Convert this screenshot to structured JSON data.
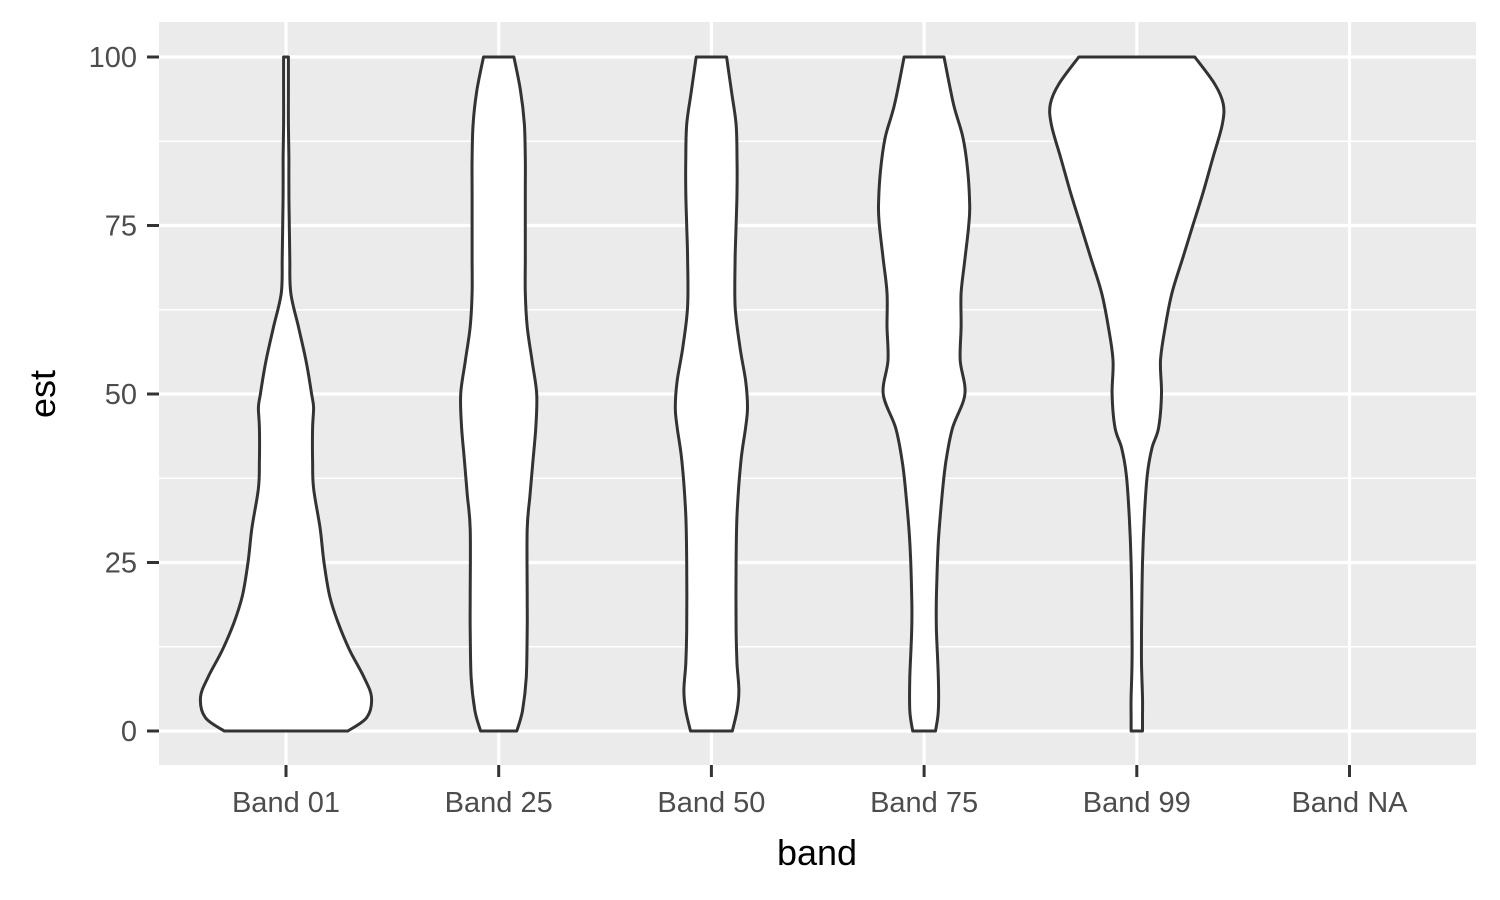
{
  "chart_data": {
    "type": "violin",
    "xlabel": "band",
    "ylabel": "est",
    "ylim": [
      -5,
      105
    ],
    "y_ticks": [
      0,
      25,
      50,
      75,
      100
    ],
    "y_tick_labels": [
      "0",
      "25",
      "50",
      "75",
      "100"
    ],
    "categories": [
      "Band 01",
      "Band 25",
      "Band 50",
      "Band 75",
      "Band 99",
      "Band NA"
    ],
    "grid": true,
    "legend": "none",
    "colors": {
      "panel_background": "#ebebeb",
      "grid_line": "#ffffff",
      "violin_fill": "#ffffff",
      "violin_stroke": "#333333",
      "tick_label": "#4d4d4d",
      "axis_title": "#000000"
    },
    "violins": [
      {
        "category": "Band 01",
        "y_min": 0,
        "y_max": 100,
        "density_y": [
          0,
          2,
          5,
          8,
          12,
          16,
          20,
          25,
          30,
          36,
          40,
          45,
          48,
          50,
          55,
          60,
          65,
          70,
          75,
          80,
          85,
          90,
          95,
          98,
          100
        ],
        "density_width": [
          0.65,
          0.85,
          0.9,
          0.82,
          0.67,
          0.55,
          0.46,
          0.4,
          0.36,
          0.29,
          0.28,
          0.28,
          0.29,
          0.27,
          0.21,
          0.13,
          0.05,
          0.04,
          0.035,
          0.03,
          0.03,
          0.025,
          0.025,
          0.025,
          0.025
        ]
      },
      {
        "category": "Band 25",
        "y_min": 0,
        "y_max": 100,
        "density_y": [
          0,
          3,
          8,
          15,
          20,
          30,
          35,
          40,
          45,
          50,
          55,
          60,
          65,
          70,
          75,
          80,
          85,
          90,
          95,
          100
        ],
        "density_width": [
          0.19,
          0.25,
          0.29,
          0.3,
          0.3,
          0.3,
          0.33,
          0.36,
          0.39,
          0.4,
          0.35,
          0.3,
          0.28,
          0.28,
          0.28,
          0.28,
          0.28,
          0.27,
          0.23,
          0.16
        ]
      },
      {
        "category": "Band 50",
        "y_min": 0,
        "y_max": 100,
        "density_y": [
          0,
          3,
          6,
          10,
          15,
          25,
          32,
          40,
          45,
          48,
          52,
          57,
          63,
          70,
          75,
          80,
          85,
          90,
          95,
          100
        ],
        "density_width": [
          0.22,
          0.27,
          0.29,
          0.27,
          0.26,
          0.26,
          0.27,
          0.31,
          0.36,
          0.38,
          0.36,
          0.3,
          0.25,
          0.25,
          0.26,
          0.27,
          0.27,
          0.26,
          0.21,
          0.16
        ]
      },
      {
        "category": "Band 75",
        "y_min": 0,
        "y_max": 100,
        "density_y": [
          0,
          3,
          8,
          15,
          20,
          28,
          35,
          40,
          45,
          50,
          55,
          60,
          65,
          70,
          75,
          78,
          83,
          88,
          93,
          100
        ],
        "density_width": [
          0.12,
          0.15,
          0.15,
          0.13,
          0.13,
          0.15,
          0.19,
          0.23,
          0.3,
          0.43,
          0.38,
          0.39,
          0.39,
          0.43,
          0.47,
          0.48,
          0.46,
          0.41,
          0.31,
          0.21
        ]
      },
      {
        "category": "Band 99",
        "y_min": 0,
        "y_max": 100,
        "density_y": [
          0,
          2,
          5,
          10,
          15,
          25,
          32,
          38,
          42,
          45,
          50,
          55,
          60,
          65,
          70,
          75,
          80,
          85,
          90,
          93,
          96,
          100
        ],
        "density_width": [
          0.06,
          0.06,
          0.06,
          0.05,
          0.05,
          0.06,
          0.08,
          0.11,
          0.16,
          0.23,
          0.26,
          0.25,
          0.3,
          0.37,
          0.48,
          0.59,
          0.7,
          0.8,
          0.9,
          0.91,
          0.82,
          0.61
        ]
      }
    ]
  }
}
